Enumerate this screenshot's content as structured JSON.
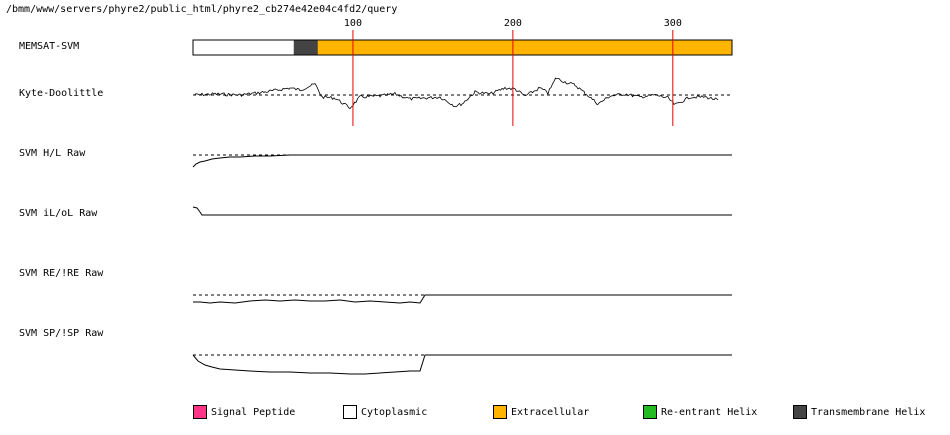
{
  "path": "/bmm/www/servers/phyre2/public_html/phyre2_cb274e42e04c4fd2/query",
  "tracks": [
    {
      "label": "MEMSAT-SVM"
    },
    {
      "label": "Kyte-Doolittle"
    },
    {
      "label": "SVM H/L Raw"
    },
    {
      "label": "SVM iL/oL Raw"
    },
    {
      "label": "SVM RE/!RE Raw"
    },
    {
      "label": "SVM SP/!SP Raw"
    }
  ],
  "ticks": [
    {
      "label": "100",
      "pos": 100
    },
    {
      "label": "200",
      "pos": 200
    },
    {
      "label": "300",
      "pos": 300
    }
  ],
  "sequence_length": 337,
  "segments": [
    {
      "type": "cytoplasmic",
      "start": 1,
      "end": 64
    },
    {
      "type": "transmembrane",
      "start": 64,
      "end": 79
    },
    {
      "type": "extracellular",
      "start": 79,
      "end": 337
    }
  ],
  "legend": [
    {
      "label": "Signal Peptide",
      "color": "#ff3388"
    },
    {
      "label": "Cytoplasmic",
      "color": "#ffffff"
    },
    {
      "label": "Extracellular",
      "color": "#ffb400"
    },
    {
      "label": "Re-entrant Helix",
      "color": "#22bb22"
    },
    {
      "label": "Transmembrane Helix",
      "color": "#444444"
    }
  ],
  "colors": {
    "cytoplasmic": "#ffffff",
    "transmembrane": "#444444",
    "extracellular": "#ffb400",
    "tick_line": "#ee0000"
  }
}
